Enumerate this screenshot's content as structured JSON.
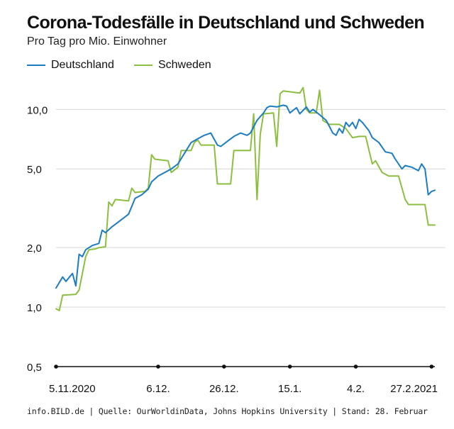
{
  "chart_data": {
    "type": "line",
    "title": "Corona-Todesfälle in Deutschland und Schweden",
    "subtitle": "Pro Tag pro Mio. Einwohner",
    "yscale": "log",
    "ylim": [
      0.5,
      13.5
    ],
    "yticks": [
      {
        "value": 10,
        "label": "10,0"
      },
      {
        "value": 5,
        "label": "5,0"
      },
      {
        "value": 2,
        "label": "2,0"
      },
      {
        "value": 1,
        "label": "1,0"
      },
      {
        "value": 0.5,
        "label": "0,5"
      }
    ],
    "xlim": [
      "2020-11-05",
      "2021-02-28"
    ],
    "xticks": [
      {
        "date": "2020-11-05",
        "label": "5.11.2020"
      },
      {
        "date": "2020-12-06",
        "label": "6.12."
      },
      {
        "date": "2020-12-26",
        "label": "26.12."
      },
      {
        "date": "2021-01-15",
        "label": "15.1."
      },
      {
        "date": "2021-02-04",
        "label": "4.2."
      },
      {
        "date": "2021-02-27",
        "label": "27.2.2021"
      }
    ],
    "series": [
      {
        "name": "Deutschland",
        "color": "#1a7dc4",
        "points": [
          [
            "2020-11-05",
            1.25
          ],
          [
            "2020-11-07",
            1.42
          ],
          [
            "2020-11-08",
            1.35
          ],
          [
            "2020-11-10",
            1.48
          ],
          [
            "2020-11-11",
            1.28
          ],
          [
            "2020-11-12",
            1.85
          ],
          [
            "2020-11-13",
            1.8
          ],
          [
            "2020-11-14",
            1.95
          ],
          [
            "2020-11-16",
            2.05
          ],
          [
            "2020-11-18",
            2.1
          ],
          [
            "2020-11-19",
            2.45
          ],
          [
            "2020-11-20",
            2.38
          ],
          [
            "2020-11-22",
            2.55
          ],
          [
            "2020-11-24",
            2.7
          ],
          [
            "2020-11-27",
            2.95
          ],
          [
            "2020-11-29",
            3.55
          ],
          [
            "2020-12-01",
            3.7
          ],
          [
            "2020-12-03",
            3.95
          ],
          [
            "2020-12-04",
            4.3
          ],
          [
            "2020-12-06",
            4.6
          ],
          [
            "2020-12-08",
            4.8
          ],
          [
            "2020-12-10",
            5.0
          ],
          [
            "2020-12-12",
            5.3
          ],
          [
            "2020-12-14",
            6.0
          ],
          [
            "2020-12-16",
            6.8
          ],
          [
            "2020-12-18",
            7.1
          ],
          [
            "2020-12-20",
            7.4
          ],
          [
            "2020-12-22",
            7.6
          ],
          [
            "2020-12-24",
            6.6
          ],
          [
            "2020-12-25",
            6.5
          ],
          [
            "2020-12-27",
            6.9
          ],
          [
            "2020-12-29",
            7.3
          ],
          [
            "2020-12-31",
            7.6
          ],
          [
            "2021-01-02",
            7.4
          ],
          [
            "2021-01-03",
            7.6
          ],
          [
            "2021-01-05",
            8.8
          ],
          [
            "2021-01-06",
            9.2
          ],
          [
            "2021-01-07",
            9.6
          ],
          [
            "2021-01-08",
            10.2
          ],
          [
            "2021-01-09",
            10.4
          ],
          [
            "2021-01-11",
            10.3
          ],
          [
            "2021-01-13",
            10.5
          ],
          [
            "2021-01-14",
            10.4
          ],
          [
            "2021-01-15",
            9.6
          ],
          [
            "2021-01-16",
            9.9
          ],
          [
            "2021-01-17",
            10.2
          ],
          [
            "2021-01-18",
            9.5
          ],
          [
            "2021-01-20",
            10.3
          ],
          [
            "2021-01-21",
            9.7
          ],
          [
            "2021-01-22",
            10.0
          ],
          [
            "2021-01-24",
            9.4
          ],
          [
            "2021-01-26",
            8.8
          ],
          [
            "2021-01-27",
            8.2
          ],
          [
            "2021-01-28",
            7.6
          ],
          [
            "2021-01-29",
            7.4
          ],
          [
            "2021-01-30",
            8.0
          ],
          [
            "2021-01-31",
            7.6
          ],
          [
            "2021-02-01",
            8.6
          ],
          [
            "2021-02-02",
            8.2
          ],
          [
            "2021-02-03",
            8.6
          ],
          [
            "2021-02-04",
            8.0
          ],
          [
            "2021-02-05",
            8.9
          ],
          [
            "2021-02-06",
            8.6
          ],
          [
            "2021-02-08",
            7.8
          ],
          [
            "2021-02-09",
            7.2
          ],
          [
            "2021-02-11",
            6.8
          ],
          [
            "2021-02-13",
            6.1
          ],
          [
            "2021-02-15",
            6.0
          ],
          [
            "2021-02-16",
            5.6
          ],
          [
            "2021-02-18",
            5.0
          ],
          [
            "2021-02-19",
            5.2
          ],
          [
            "2021-02-21",
            5.1
          ],
          [
            "2021-02-23",
            4.9
          ],
          [
            "2021-02-24",
            5.3
          ],
          [
            "2021-02-25",
            5.0
          ],
          [
            "2021-02-26",
            3.7
          ],
          [
            "2021-02-27",
            3.85
          ],
          [
            "2021-02-28",
            3.9
          ]
        ]
      },
      {
        "name": "Schweden",
        "color": "#8cbf3f",
        "points": [
          [
            "2020-11-05",
            0.98
          ],
          [
            "2020-11-06",
            0.96
          ],
          [
            "2020-11-07",
            1.15
          ],
          [
            "2020-11-11",
            1.16
          ],
          [
            "2020-11-12",
            1.22
          ],
          [
            "2020-11-14",
            1.8
          ],
          [
            "2020-11-15",
            1.95
          ],
          [
            "2020-11-17",
            1.97
          ],
          [
            "2020-11-18",
            2.0
          ],
          [
            "2020-11-20",
            2.02
          ],
          [
            "2020-11-21",
            3.4
          ],
          [
            "2020-11-22",
            3.25
          ],
          [
            "2020-11-23",
            3.5
          ],
          [
            "2020-11-27",
            3.45
          ],
          [
            "2020-11-28",
            4.0
          ],
          [
            "2020-11-29",
            3.8
          ],
          [
            "2020-12-02",
            3.85
          ],
          [
            "2020-12-03",
            4.0
          ],
          [
            "2020-12-04",
            5.9
          ],
          [
            "2020-12-05",
            5.6
          ],
          [
            "2020-12-09",
            5.5
          ],
          [
            "2020-12-10",
            4.8
          ],
          [
            "2020-12-12",
            5.1
          ],
          [
            "2020-12-13",
            6.2
          ],
          [
            "2020-12-16",
            6.2
          ],
          [
            "2020-12-17",
            6.8
          ],
          [
            "2020-12-18",
            7.0
          ],
          [
            "2020-12-19",
            6.6
          ],
          [
            "2020-12-23",
            6.6
          ],
          [
            "2020-12-24",
            4.2
          ],
          [
            "2020-12-28",
            4.2
          ],
          [
            "2020-12-29",
            6.2
          ],
          [
            "2021-01-03",
            6.2
          ],
          [
            "2021-01-04",
            9.5
          ],
          [
            "2021-01-05",
            3.5
          ],
          [
            "2021-01-06",
            7.5
          ],
          [
            "2021-01-07",
            9.5
          ],
          [
            "2021-01-10",
            9.6
          ],
          [
            "2021-01-11",
            6.5
          ],
          [
            "2021-01-12",
            12.0
          ],
          [
            "2021-01-13",
            12.4
          ],
          [
            "2021-01-18",
            12.1
          ],
          [
            "2021-01-19",
            12.9
          ],
          [
            "2021-01-20",
            10.0
          ],
          [
            "2021-01-21",
            9.6
          ],
          [
            "2021-01-23",
            9.6
          ],
          [
            "2021-01-24",
            12.5
          ],
          [
            "2021-01-25",
            8.8
          ],
          [
            "2021-01-27",
            8.4
          ],
          [
            "2021-01-30",
            8.4
          ],
          [
            "2021-02-01",
            8.0
          ],
          [
            "2021-02-03",
            7.2
          ],
          [
            "2021-02-05",
            7.3
          ],
          [
            "2021-02-07",
            7.3
          ],
          [
            "2021-02-09",
            5.3
          ],
          [
            "2021-02-10",
            5.5
          ],
          [
            "2021-02-12",
            4.8
          ],
          [
            "2021-02-14",
            4.6
          ],
          [
            "2021-02-17",
            4.6
          ],
          [
            "2021-02-19",
            3.5
          ],
          [
            "2021-02-20",
            3.3
          ],
          [
            "2021-02-25",
            3.3
          ],
          [
            "2021-02-26",
            2.6
          ],
          [
            "2021-02-28",
            2.6
          ]
        ]
      }
    ]
  },
  "legend_position": "top-left",
  "source": "info.BILD.de | Quelle: OurWorldinData, Johns Hopkins University | Stand: 28. Februar"
}
